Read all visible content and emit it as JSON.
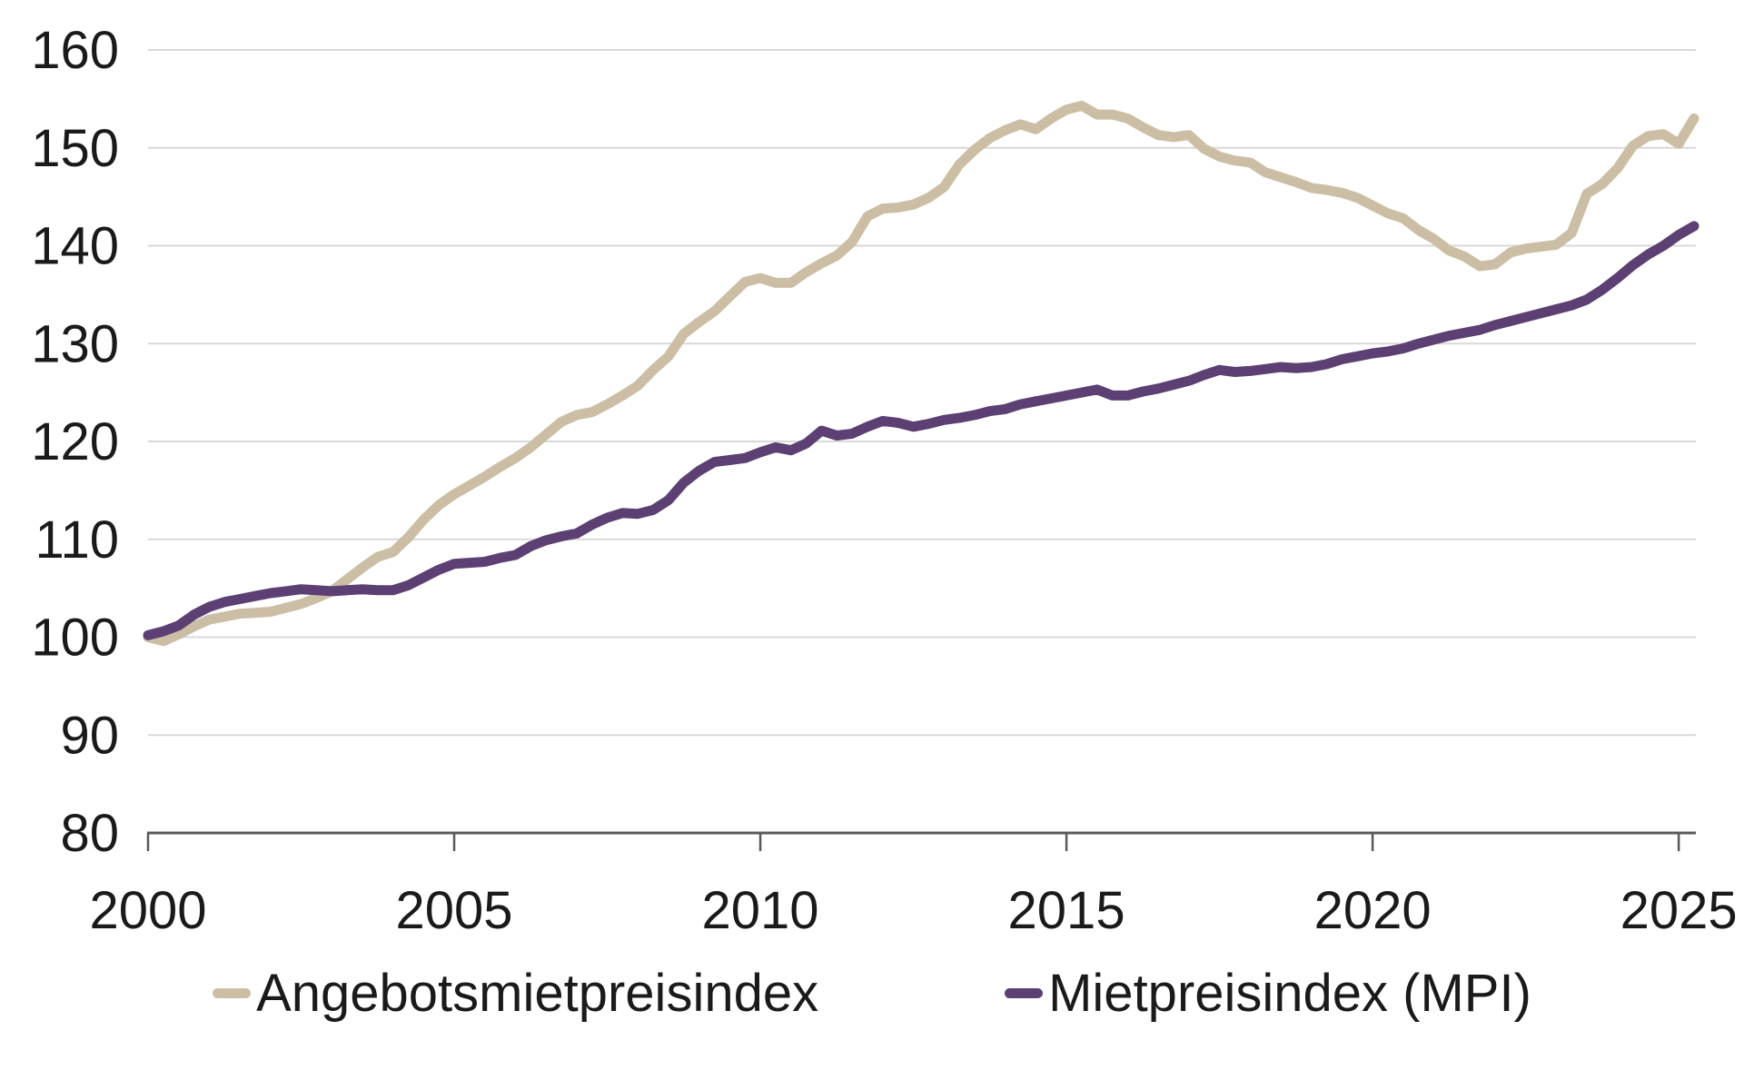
{
  "chart_data": {
    "type": "line",
    "title": "",
    "xlabel": "",
    "ylabel": "",
    "ylim": [
      80,
      160
    ],
    "yticks": [
      80,
      90,
      100,
      110,
      120,
      130,
      140,
      150,
      160
    ],
    "xticks": [
      2000,
      2005,
      2010,
      2015,
      2020,
      2025
    ],
    "grid": "horizontal",
    "legend_position": "bottom",
    "x_start": 2000.0,
    "x_step": 0.25,
    "x_end": 2025.25,
    "series": [
      {
        "name": "Angebotsmietpreisindex",
        "color": "#ccbea4",
        "values": [
          100.0,
          99.6,
          100.3,
          101.1,
          101.8,
          102.1,
          102.4,
          102.5,
          102.6,
          103.0,
          103.4,
          104.0,
          104.7,
          105.9,
          107.1,
          108.2,
          108.7,
          110.2,
          112.0,
          113.5,
          114.6,
          115.5,
          116.4,
          117.4,
          118.3,
          119.4,
          120.7,
          122.0,
          122.7,
          123.0,
          123.8,
          124.7,
          125.7,
          127.3,
          128.7,
          131.0,
          132.2,
          133.3,
          134.8,
          136.3,
          136.7,
          136.2,
          136.2,
          137.3,
          138.2,
          139.0,
          140.4,
          143.0,
          143.8,
          143.9,
          144.2,
          144.9,
          146.0,
          148.3,
          149.8,
          151.0,
          151.8,
          152.4,
          151.9,
          153.0,
          153.9,
          154.3,
          153.4,
          153.4,
          153.0,
          152.1,
          151.3,
          151.1,
          151.3,
          149.9,
          149.1,
          148.7,
          148.5,
          147.5,
          147.0,
          146.5,
          145.9,
          145.7,
          145.4,
          144.9,
          144.1,
          143.3,
          142.8,
          141.6,
          140.7,
          139.5,
          138.9,
          137.9,
          138.1,
          139.3,
          139.7,
          139.9,
          140.1,
          141.3,
          145.3,
          146.3,
          147.9,
          150.2,
          151.2,
          151.4,
          150.4,
          153.0
        ]
      },
      {
        "name": "Mietpreisindex (MPI)",
        "color": "#5c3f73",
        "values": [
          100.2,
          100.6,
          101.2,
          102.3,
          103.1,
          103.6,
          103.9,
          104.2,
          104.5,
          104.7,
          104.9,
          104.8,
          104.7,
          104.8,
          104.9,
          104.8,
          104.8,
          105.3,
          106.1,
          106.9,
          107.5,
          107.6,
          107.7,
          108.1,
          108.4,
          109.3,
          109.9,
          110.3,
          110.6,
          111.5,
          112.2,
          112.7,
          112.6,
          113.0,
          114.0,
          115.8,
          117.0,
          117.9,
          118.1,
          118.3,
          118.9,
          119.4,
          119.1,
          119.8,
          121.1,
          120.6,
          120.8,
          121.5,
          122.1,
          121.9,
          121.5,
          121.8,
          122.2,
          122.4,
          122.7,
          123.1,
          123.3,
          123.8,
          124.1,
          124.4,
          124.7,
          125.0,
          125.3,
          124.7,
          124.7,
          125.1,
          125.4,
          125.8,
          126.2,
          126.8,
          127.3,
          127.1,
          127.2,
          127.4,
          127.6,
          127.5,
          127.6,
          127.9,
          128.4,
          128.7,
          129.0,
          129.2,
          129.5,
          130.0,
          130.4,
          130.8,
          131.1,
          131.4,
          131.9,
          132.3,
          132.7,
          133.1,
          133.5,
          133.9,
          134.5,
          135.5,
          136.7,
          138.0,
          139.1,
          140.0,
          141.1,
          142.0
        ]
      }
    ]
  },
  "axes": {
    "y_tick_labels": [
      "80",
      "90",
      "100",
      "110",
      "120",
      "130",
      "140",
      "150",
      "160"
    ],
    "x_tick_labels": [
      "2000",
      "2005",
      "2010",
      "2015",
      "2020",
      "2025"
    ]
  },
  "legend": {
    "items": [
      {
        "label": "Angebotsmietpreisindex",
        "color": "#ccbea4"
      },
      {
        "label": "Mietpreisindex (MPI)",
        "color": "#5c3f73"
      }
    ]
  },
  "colors": {
    "gridline": "#d9d9d9",
    "axis": "#595959",
    "text": "#1a1a1a",
    "background": "#ffffff",
    "series_offer_rents": "#ccbea4",
    "series_rent_index": "#5c3f73"
  }
}
